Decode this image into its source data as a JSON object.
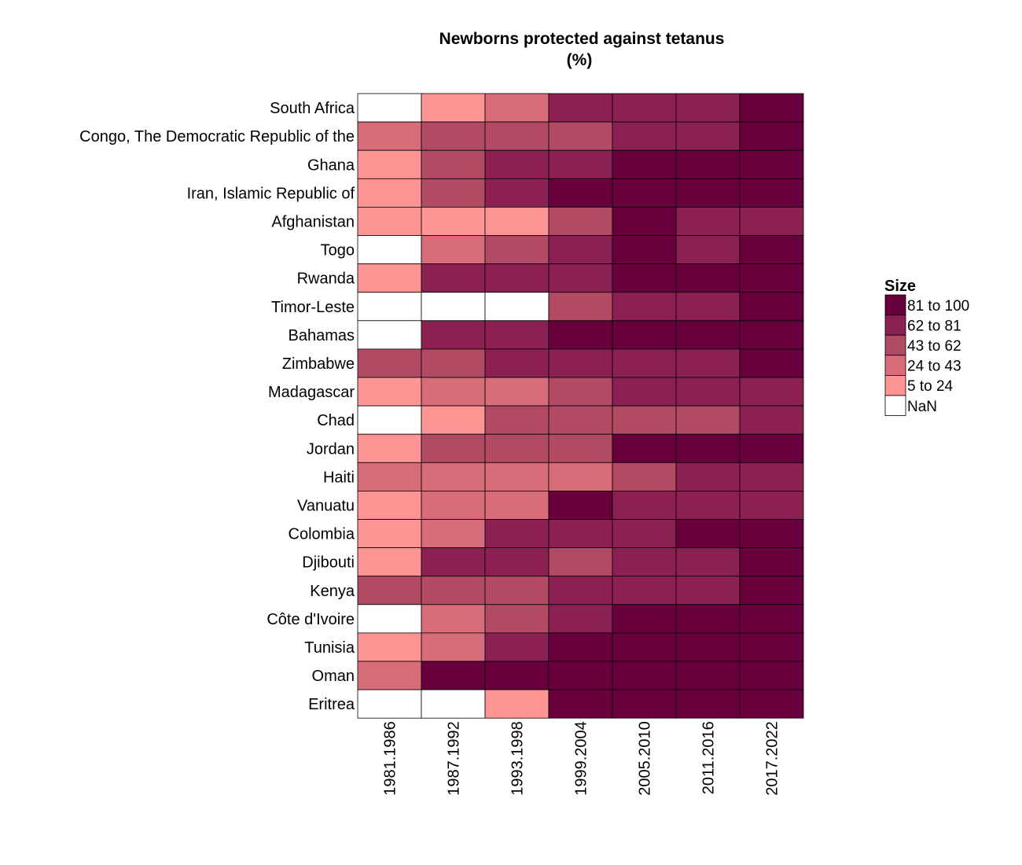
{
  "chart_data": {
    "type": "heatmap",
    "title": "Newborns protected against tetanus",
    "subtitle": "(%)",
    "rows": [
      "South Africa",
      "Congo, The Democratic Republic of the",
      "Ghana",
      "Iran, Islamic Republic of",
      "Afghanistan",
      "Togo",
      "Rwanda",
      "Timor-Leste",
      "Bahamas",
      "Zimbabwe",
      "Madagascar",
      "Chad",
      "Jordan",
      "Haiti",
      "Vanuatu",
      "Colombia",
      "Djibouti",
      "Kenya",
      "Côte d'Ivoire",
      "Tunisia",
      "Oman",
      "Eritrea"
    ],
    "columns": [
      "1981.1986",
      "1987.1992",
      "1993.1998",
      "1999.2004",
      "2005.2010",
      "2011.2016",
      "2017.2022"
    ],
    "bins_note": "values are legend bin indices: 0=NaN, 1=5 to 24, 2=24 to 43, 3=43 to 62, 4=62 to 81, 5=81 to 100",
    "values": [
      [
        0,
        1,
        2,
        4,
        4,
        4,
        5
      ],
      [
        2,
        3,
        3,
        3,
        4,
        4,
        5
      ],
      [
        1,
        3,
        4,
        4,
        5,
        5,
        5
      ],
      [
        1,
        3,
        4,
        5,
        5,
        5,
        5
      ],
      [
        1,
        1,
        1,
        3,
        5,
        4,
        4
      ],
      [
        0,
        2,
        3,
        4,
        5,
        4,
        5
      ],
      [
        1,
        4,
        4,
        4,
        5,
        5,
        5
      ],
      [
        0,
        0,
        0,
        3,
        4,
        4,
        5
      ],
      [
        0,
        4,
        4,
        5,
        5,
        5,
        5
      ],
      [
        3,
        3,
        4,
        4,
        4,
        4,
        5
      ],
      [
        1,
        2,
        2,
        3,
        4,
        4,
        4
      ],
      [
        0,
        1,
        3,
        3,
        3,
        3,
        4
      ],
      [
        1,
        3,
        3,
        3,
        5,
        5,
        5
      ],
      [
        2,
        2,
        2,
        2,
        3,
        4,
        4
      ],
      [
        1,
        2,
        2,
        5,
        4,
        4,
        4
      ],
      [
        1,
        2,
        4,
        4,
        4,
        5,
        5
      ],
      [
        1,
        4,
        4,
        3,
        4,
        4,
        5
      ],
      [
        3,
        3,
        3,
        4,
        4,
        4,
        5
      ],
      [
        0,
        2,
        3,
        4,
        5,
        5,
        5
      ],
      [
        1,
        2,
        4,
        5,
        5,
        5,
        5
      ],
      [
        2,
        5,
        5,
        5,
        5,
        5,
        5
      ],
      [
        0,
        0,
        1,
        5,
        5,
        5,
        5
      ]
    ],
    "legend": {
      "title": "Size",
      "position": "right",
      "items": [
        {
          "label": "81 to 100",
          "color": "#67003d"
        },
        {
          "label": "62 to 81",
          "color": "#8a2152"
        },
        {
          "label": "43 to 62",
          "color": "#b14a64"
        },
        {
          "label": "24 to 43",
          "color": "#d86c78"
        },
        {
          "label": "5 to 24",
          "color": "#ff9494"
        },
        {
          "label": "NaN",
          "color": "#ffffff"
        }
      ]
    },
    "bin_colors": [
      "#ffffff",
      "#ff9494",
      "#d86c78",
      "#b14a64",
      "#8a2152",
      "#67003d"
    ],
    "grid": false
  }
}
